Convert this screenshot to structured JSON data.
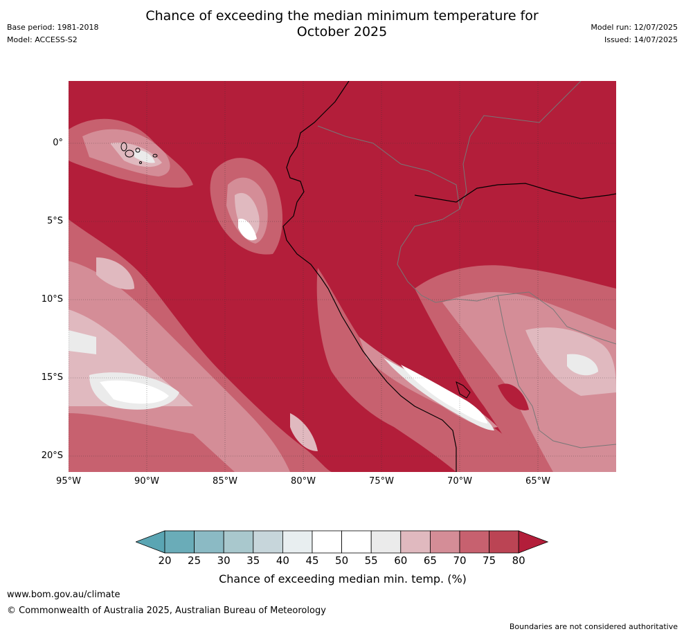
{
  "header": {
    "title_line1": "Chance of exceeding the median minimum temperature for",
    "title_line2": "October 2025",
    "base_period": "Base period: 1981-2018",
    "model": "Model: ACCESS-S2",
    "model_run": "Model run: 12/07/2025",
    "issued": "Issued: 14/07/2025"
  },
  "map": {
    "y_ticks": [
      "0°",
      "5°S",
      "10°S",
      "15°S",
      "20°S"
    ],
    "x_ticks": [
      "95°W",
      "90°W",
      "85°W",
      "80°W",
      "75°W",
      "70°W",
      "65°W"
    ],
    "dominant_color": "#b31e3a"
  },
  "colorbar": {
    "label": "Chance of exceeding median min. temp. (%)",
    "ticks": [
      "20",
      "25",
      "30",
      "35",
      "40",
      "45",
      "50",
      "55",
      "60",
      "65",
      "70",
      "75",
      "80"
    ],
    "colors": [
      "#5aa5b3",
      "#6aacb8",
      "#8bbac4",
      "#a9c8cd",
      "#c7d6db",
      "#e8eef0",
      "#ffffff",
      "#ffffff",
      "#ebebeb",
      "#e0b9bf",
      "#d48d97",
      "#c7616f",
      "#bb4454",
      "#b31e3a"
    ]
  },
  "footer": {
    "website": "www.bom.gov.au/climate",
    "copyright": "© Commonwealth of Australia 2025, Australian Bureau of Meteorology",
    "disclaimer": "Boundaries are not considered authoritative"
  }
}
